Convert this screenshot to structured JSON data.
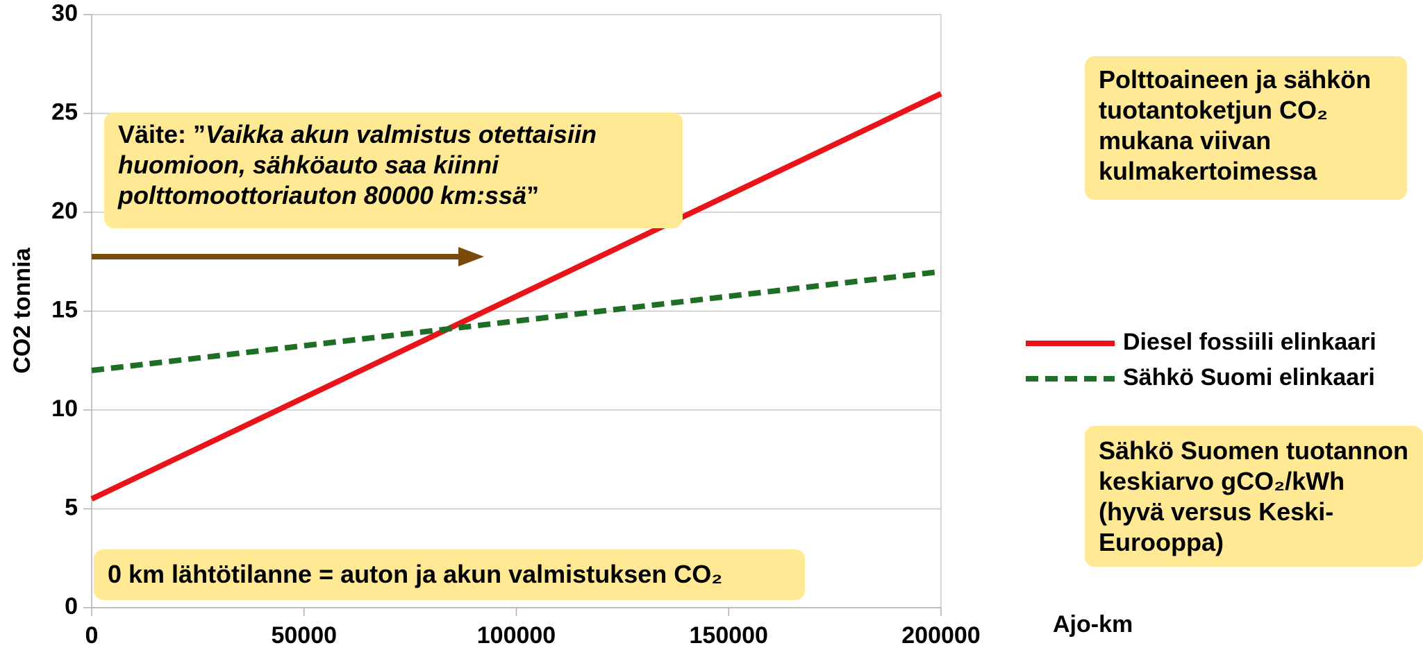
{
  "chart_data": {
    "type": "line",
    "y_label": "CO2 tonnia",
    "x_label": "Ajo-km",
    "x": [
      0,
      200000
    ],
    "series": [
      {
        "name": "Diesel fossiili elinkaari",
        "color": "#e8141a",
        "dash": false,
        "values": [
          5.5,
          26
        ]
      },
      {
        "name": "Sähkö Suomi elinkaari",
        "color": "#1e6e26",
        "dash": true,
        "values": [
          12,
          17
        ]
      }
    ],
    "xlim": [
      0,
      200000
    ],
    "xticks": [
      0,
      50000,
      100000,
      150000,
      200000
    ],
    "ylim": [
      0,
      30
    ],
    "yticks": [
      0,
      5,
      10,
      15,
      20,
      25,
      30
    ],
    "grid": true,
    "annotations": {
      "claim": {
        "lead": "Väite: ”",
        "quote": "Vaikka akun valmistus otettaisiin huomioon, sähköauto saa kiinni polttomoottoriauton 80000 km:ssä",
        "end": "”"
      },
      "slope": "Polttoaineen ja sähkön tuotantoketjun CO₂ mukana viivan kulmakertoimessa",
      "average": "Sähkö Suomen tuotannon keskiarvo gCO₂/kWh (hyvä versus Keski-Eurooppa)",
      "start": "0 km lähtötilanne = auton ja akun valmistuksen CO₂"
    }
  }
}
